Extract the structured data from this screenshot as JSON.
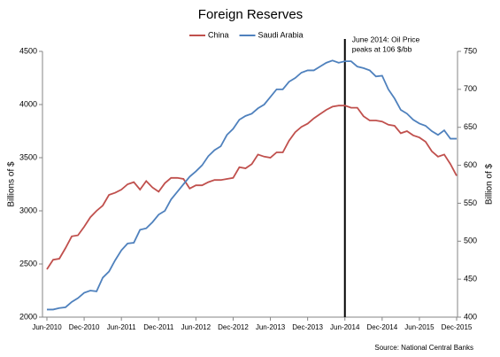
{
  "chart_data": {
    "type": "line",
    "title": "Foreign Reserves",
    "y_label": "Billions of $",
    "y2_label": "Billion of $",
    "source": "Source: National Central Banks",
    "categories": [
      "Jun-2010",
      null,
      null,
      null,
      null,
      null,
      "Dec-2010",
      null,
      null,
      null,
      null,
      null,
      "Jun-2011",
      null,
      null,
      null,
      null,
      null,
      "Dec-2011",
      null,
      null,
      null,
      null,
      null,
      "Jun-2012",
      null,
      null,
      null,
      null,
      null,
      "Dec-2012",
      null,
      null,
      null,
      null,
      null,
      "Jun-2013",
      null,
      null,
      null,
      null,
      null,
      "Dec-2013",
      null,
      null,
      null,
      null,
      null,
      "Jun-2014",
      null,
      null,
      null,
      null,
      null,
      "Dec-2014",
      null,
      null,
      null,
      null,
      null,
      "Jun-2015",
      null,
      null,
      null,
      null,
      null,
      "Dec-2015"
    ],
    "series": [
      {
        "name": "China",
        "color": "#c0504d",
        "values": [
          2450,
          2540,
          2550,
          2650,
          2760,
          2770,
          2850,
          2940,
          3000,
          3050,
          3150,
          3170,
          3200,
          3250,
          3270,
          3200,
          3280,
          3220,
          3180,
          3260,
          3310,
          3310,
          3300,
          3210,
          3240,
          3240,
          3270,
          3290,
          3290,
          3300,
          3310,
          3410,
          3400,
          3440,
          3530,
          3510,
          3500,
          3550,
          3550,
          3660,
          3740,
          3790,
          3820,
          3870,
          3910,
          3950,
          3980,
          3990,
          3990,
          3970,
          3970,
          3890,
          3850,
          3850,
          3840,
          3810,
          3800,
          3730,
          3750,
          3710,
          3690,
          3650,
          3560,
          3510,
          3530,
          3440,
          3330
        ]
      },
      {
        "name": "Saudi Arabia",
        "color": "#4f81bd",
        "axis": "y2",
        "values": [
          410,
          410,
          412,
          413,
          420,
          425,
          432,
          435,
          434,
          452,
          460,
          475,
          488,
          497,
          498,
          515,
          517,
          525,
          535,
          540,
          555,
          565,
          575,
          585,
          592,
          600,
          612,
          620,
          625,
          640,
          648,
          660,
          665,
          668,
          675,
          680,
          690,
          700,
          700,
          710,
          715,
          722,
          725,
          725,
          730,
          735,
          738,
          735,
          737,
          737,
          730,
          728,
          725,
          717,
          718,
          700,
          688,
          673,
          668,
          660,
          655,
          652,
          645,
          640,
          646,
          635,
          635
        ]
      }
    ],
    "ylim": [
      2000,
      4500
    ],
    "yticks": [
      2000,
      2500,
      3000,
      3500,
      4000,
      4500
    ],
    "y2lim": [
      400,
      750
    ],
    "y2ticks": [
      400,
      450,
      500,
      550,
      600,
      650,
      700,
      750
    ],
    "annotation": {
      "lines": [
        "June 2014: Oil Price",
        "peaks at 106 $/bb"
      ],
      "x": "Jun-2014"
    },
    "grid": false
  }
}
